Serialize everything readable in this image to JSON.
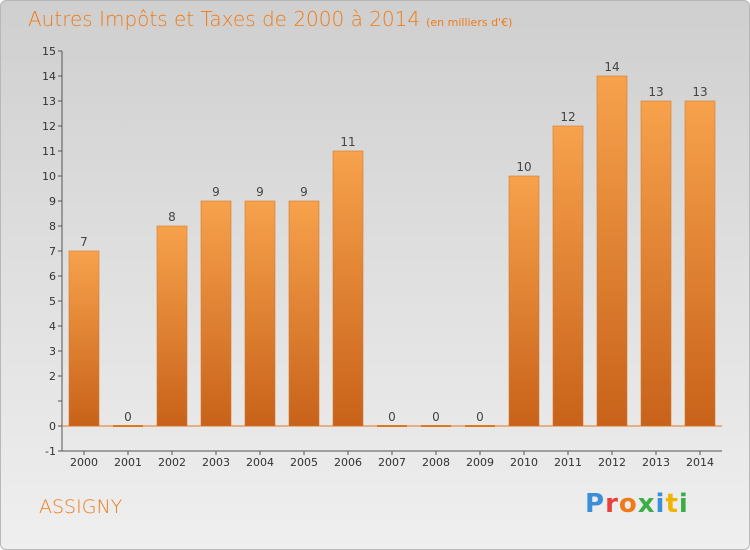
{
  "header": {
    "title": "Autres Impôts et Taxes de 2000 à 2014",
    "unit": "(en milliers d'€)"
  },
  "footer": {
    "commune": "ASSIGNY",
    "brand": "Proxiti",
    "brand_letter_colors": [
      "#3a8fd8",
      "#e8413c",
      "#f07a17",
      "#3cae48",
      "#3a8fd8",
      "#f0b500",
      "#3cae48"
    ]
  },
  "colors": {
    "accent": "#f07a17",
    "bar_top": "#f7a24c",
    "bar_bottom": "#c8621a",
    "zero_line": "#e07820"
  },
  "chart_data": {
    "type": "bar",
    "title": "Autres Impôts et Taxes de 2000 à 2014",
    "subtitle": "(en milliers d'€)",
    "xlabel": "",
    "ylabel": "",
    "categories": [
      "2000",
      "2001",
      "2002",
      "2003",
      "2004",
      "2005",
      "2006",
      "2007",
      "2008",
      "2009",
      "2010",
      "2011",
      "2012",
      "2013",
      "2014"
    ],
    "values": [
      7,
      0,
      8,
      9,
      9,
      9,
      11,
      0,
      0,
      0,
      10,
      12,
      14,
      13,
      13
    ],
    "data_labels": [
      "7",
      "0",
      "8",
      "9",
      "9",
      "9",
      "11",
      "0",
      "0",
      "0",
      "10",
      "12",
      "14",
      "13",
      "13"
    ],
    "y_ticks": [
      "-1",
      "0",
      "",
      "2",
      "3",
      "4",
      "5",
      "6",
      "7",
      "8",
      "9",
      "10",
      "11",
      "12",
      "13",
      "14",
      "15"
    ],
    "y_tick_values": [
      -1,
      0,
      1,
      2,
      3,
      4,
      5,
      6,
      7,
      8,
      9,
      10,
      11,
      12,
      13,
      14,
      15
    ],
    "ylim": [
      -1,
      15
    ],
    "grid": false,
    "legend": "none"
  }
}
